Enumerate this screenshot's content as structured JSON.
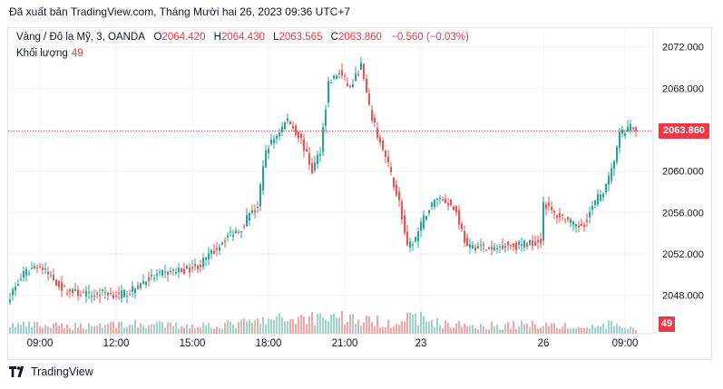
{
  "caption": "Đã xuất bản TradingView.com, Tháng Mười hai 26, 2023 09:36 UTC+7",
  "legend": {
    "symbol": "Vàng / Đô la Mỹ, 3, OANDA",
    "open_label": "O",
    "open": "2064.420",
    "high_label": "H",
    "high": "2064.430",
    "low_label": "L",
    "low": "2063.565",
    "close_label": "C",
    "close": "2063.860",
    "change": "−0.560 (−0.03%)"
  },
  "volume_legend": {
    "label": "Khối lượng",
    "value": "49"
  },
  "price_badge": "2063.860",
  "volume_badge": "49",
  "footer": {
    "brand": "TradingView",
    "logo_text": "17"
  },
  "colors": {
    "up": "#26a69a",
    "down": "#ef5350",
    "up_vol": "#9fd3cc",
    "down_vol": "#f4a6a6",
    "badge": "#f23645",
    "grid": "#f0f3fa"
  },
  "chart_data": {
    "type": "candlestick",
    "symbol": "XAU/USD",
    "interval": "3",
    "y_axis": {
      "ticks": [
        2048.0,
        2052.0,
        2056.0,
        2060.0,
        2064.0,
        2068.0,
        2072.0
      ],
      "tick_labels": [
        "2048.000",
        "2052.000",
        "2056.000",
        "2060.000",
        "2064.000",
        "2068.000",
        "2072.000"
      ],
      "ylim": [
        2044.3,
        2073.8
      ]
    },
    "x_axis": {
      "tick_labels": [
        "09:00",
        "12:00",
        "15:00",
        "18:00",
        "21:00",
        "23",
        "26",
        "09:00"
      ],
      "tick_positions": [
        11,
        39,
        67,
        95,
        123,
        151,
        196,
        226
      ]
    },
    "last_price": 2063.86,
    "last_volume": 49,
    "close_path": [
      [
        0,
        2048.0
      ],
      [
        5,
        2050.0
      ],
      [
        10,
        2051.0
      ],
      [
        15,
        2049.8
      ],
      [
        20,
        2048.5
      ],
      [
        25,
        2048.2
      ],
      [
        30,
        2048.0
      ],
      [
        35,
        2048.3
      ],
      [
        40,
        2048.0
      ],
      [
        45,
        2048.5
      ],
      [
        50,
        2049.5
      ],
      [
        55,
        2050.0
      ],
      [
        60,
        2050.3
      ],
      [
        65,
        2050.5
      ],
      [
        70,
        2051.0
      ],
      [
        75,
        2052.3
      ],
      [
        80,
        2053.8
      ],
      [
        85,
        2054.5
      ],
      [
        88,
        2056.0
      ],
      [
        91,
        2056.5
      ],
      [
        94,
        2062.0
      ],
      [
        98,
        2063.5
      ],
      [
        102,
        2065.0
      ],
      [
        107,
        2063.0
      ],
      [
        111,
        2060.0
      ],
      [
        114,
        2062.0
      ],
      [
        117,
        2068.5
      ],
      [
        121,
        2069.5
      ],
      [
        125,
        2068.0
      ],
      [
        129,
        2070.2
      ],
      [
        132,
        2066.0
      ],
      [
        135,
        2063.5
      ],
      [
        139,
        2060.5
      ],
      [
        143,
        2057.0
      ],
      [
        146,
        2052.5
      ],
      [
        149,
        2053.5
      ],
      [
        153,
        2056.0
      ],
      [
        157,
        2057.5
      ],
      [
        161,
        2057.0
      ],
      [
        164,
        2056.0
      ],
      [
        168,
        2052.5
      ],
      [
        172,
        2052.8
      ],
      [
        177,
        2052.3
      ],
      [
        182,
        2053.0
      ],
      [
        186,
        2052.8
      ],
      [
        190,
        2053.0
      ],
      [
        195,
        2053.3
      ],
      [
        196,
        2057.0
      ],
      [
        200,
        2055.8
      ],
      [
        204,
        2055.5
      ],
      [
        208,
        2054.5
      ],
      [
        211,
        2055.0
      ],
      [
        215,
        2057.0
      ],
      [
        219,
        2058.5
      ],
      [
        221,
        2060.0
      ],
      [
        224,
        2063.5
      ],
      [
        226,
        2063.8
      ],
      [
        228,
        2064.3
      ],
      [
        230,
        2063.86
      ]
    ],
    "volume_profile": [
      [
        0,
        10
      ],
      [
        20,
        8
      ],
      [
        40,
        11
      ],
      [
        60,
        9
      ],
      [
        80,
        10
      ],
      [
        100,
        16
      ],
      [
        120,
        20
      ],
      [
        130,
        14
      ],
      [
        140,
        13
      ],
      [
        150,
        18
      ],
      [
        160,
        10
      ],
      [
        180,
        9
      ],
      [
        196,
        11
      ],
      [
        210,
        6
      ],
      [
        220,
        10
      ],
      [
        230,
        6
      ]
    ]
  }
}
